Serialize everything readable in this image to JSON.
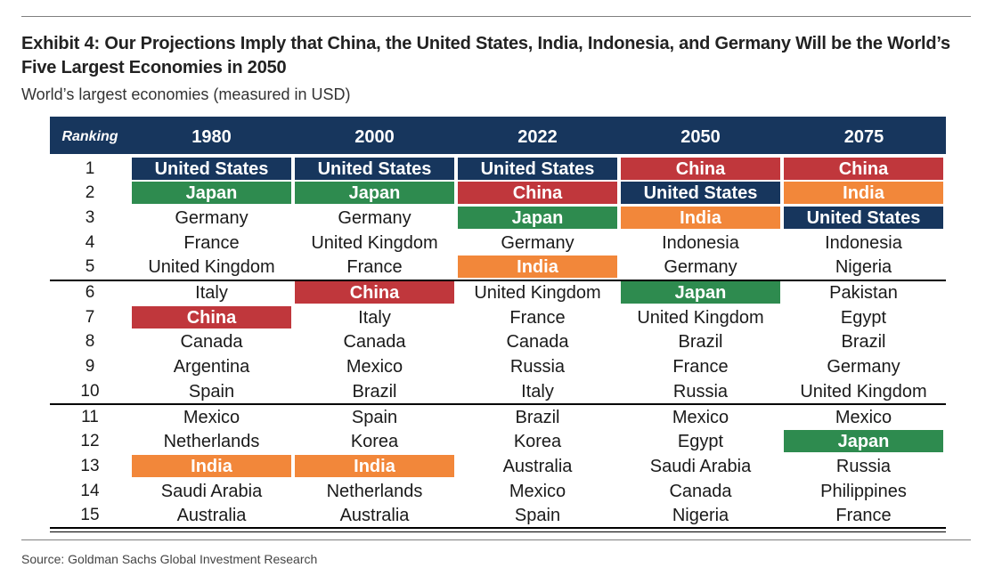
{
  "title": "Exhibit 4: Our Projections Imply that China, the United States, India, Indonesia, and Germany Will be the World’s Five Largest Economies in 2050",
  "subtitle": "World’s largest economies (measured in USD)",
  "header": {
    "ranking": "Ranking",
    "years": [
      "1980",
      "2000",
      "2022",
      "2050",
      "2075"
    ]
  },
  "colors": {
    "header_bg": "#17365d",
    "United States": "#17365d",
    "China": "#c0373c",
    "Japan": "#2e8b4f",
    "India": "#f2873a"
  },
  "rows": [
    {
      "rank": "1",
      "countries": [
        "United States",
        "United States",
        "United States",
        "China",
        "China"
      ]
    },
    {
      "rank": "2",
      "countries": [
        "Japan",
        "Japan",
        "China",
        "United States",
        "India"
      ]
    },
    {
      "rank": "3",
      "countries": [
        "Germany",
        "Germany",
        "Japan",
        "India",
        "United States"
      ]
    },
    {
      "rank": "4",
      "countries": [
        "France",
        "United Kingdom",
        "Germany",
        "Indonesia",
        "Indonesia"
      ]
    },
    {
      "rank": "5",
      "countries": [
        "United Kingdom",
        "France",
        "India",
        "Germany",
        "Nigeria"
      ]
    },
    {
      "rank": "6",
      "countries": [
        "Italy",
        "China",
        "United Kingdom",
        "Japan",
        "Pakistan"
      ]
    },
    {
      "rank": "7",
      "countries": [
        "China",
        "Italy",
        "France",
        "United Kingdom",
        "Egypt"
      ]
    },
    {
      "rank": "8",
      "countries": [
        "Canada",
        "Canada",
        "Canada",
        "Brazil",
        "Brazil"
      ]
    },
    {
      "rank": "9",
      "countries": [
        "Argentina",
        "Mexico",
        "Russia",
        "France",
        "Germany"
      ]
    },
    {
      "rank": "10",
      "countries": [
        "Spain",
        "Brazil",
        "Italy",
        "Russia",
        "United Kingdom"
      ]
    },
    {
      "rank": "11",
      "countries": [
        "Mexico",
        "Spain",
        "Brazil",
        "Mexico",
        "Mexico"
      ]
    },
    {
      "rank": "12",
      "countries": [
        "Netherlands",
        "Korea",
        "Korea",
        "Egypt",
        "Japan"
      ]
    },
    {
      "rank": "13",
      "countries": [
        "India",
        "India",
        "Australia",
        "Saudi Arabia",
        "Russia"
      ]
    },
    {
      "rank": "14",
      "countries": [
        "Saudi Arabia",
        "Netherlands",
        "Mexico",
        "Canada",
        "Philippines"
      ]
    },
    {
      "rank": "15",
      "countries": [
        "Australia",
        "Australia",
        "Spain",
        "Nigeria",
        "France"
      ]
    }
  ],
  "source": "Source: Goldman Sachs Global Investment Research"
}
